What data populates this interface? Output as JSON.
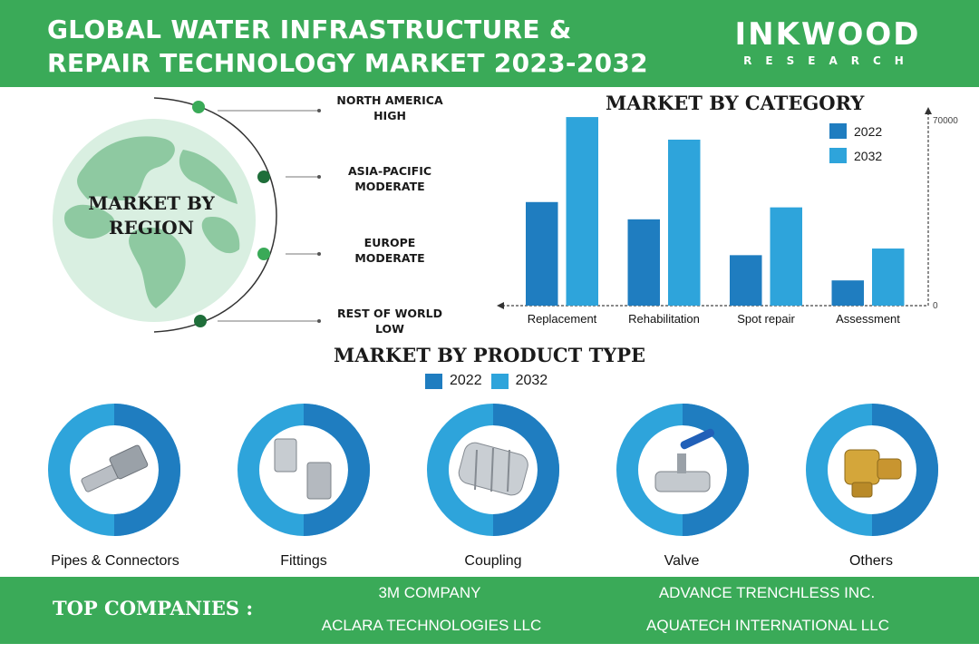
{
  "header": {
    "title_line1": "GLOBAL WATER INFRASTRUCTURE &",
    "title_line2": "REPAIR TECHNOLOGY MARKET 2023-2032",
    "brand_name": "INKWOOD",
    "brand_sub": "RESEARCH"
  },
  "region": {
    "heading_line1": "MARKET BY",
    "heading_line2": "REGION",
    "items": [
      {
        "name": "NORTH AMERICA",
        "level": "HIGH"
      },
      {
        "name": "ASIA-PACIFIC",
        "level": "MODERATE"
      },
      {
        "name": "EUROPE",
        "level": "MODERATE"
      },
      {
        "name": "REST OF WORLD",
        "level": "LOW"
      }
    ]
  },
  "colors": {
    "green": "#3aaa58",
    "dark_green": "#1f6e3a",
    "bar_2022": "#1f7dc0",
    "bar_2032": "#2ea4db",
    "globe": "#8ec9a1"
  },
  "chart_data": {
    "type": "bar",
    "title": "MARKET BY CATEGORY",
    "categories": [
      "Replacement",
      "Rehabilitation",
      "Spot repair",
      "Assessment"
    ],
    "series": [
      {
        "name": "2022",
        "values": [
          39000,
          32500,
          19000,
          9500
        ]
      },
      {
        "name": "2032",
        "values": [
          71000,
          62500,
          37000,
          21500
        ]
      }
    ],
    "ylim": [
      0,
      70000
    ],
    "yticks": [
      "70000",
      "0"
    ],
    "legend_position": "top-right",
    "grid": false
  },
  "product": {
    "heading": "MARKET BY PRODUCT TYPE",
    "legend": [
      "2022",
      "2032"
    ],
    "items": [
      {
        "label": "Pipes & Connectors",
        "icon": "pipe-connector-icon"
      },
      {
        "label": "Fittings",
        "icon": "fittings-icon"
      },
      {
        "label": "Coupling",
        "icon": "coupling-icon"
      },
      {
        "label": "Valve",
        "icon": "valve-icon"
      },
      {
        "label": "Others",
        "icon": "brass-fitting-icon"
      }
    ]
  },
  "footer": {
    "title": "TOP COMPANIES :",
    "companies": [
      "3M COMPANY",
      "ADVANCE TRENCHLESS INC.",
      "ACLARA TECHNOLOGIES LLC",
      "AQUATECH INTERNATIONAL LLC"
    ]
  }
}
